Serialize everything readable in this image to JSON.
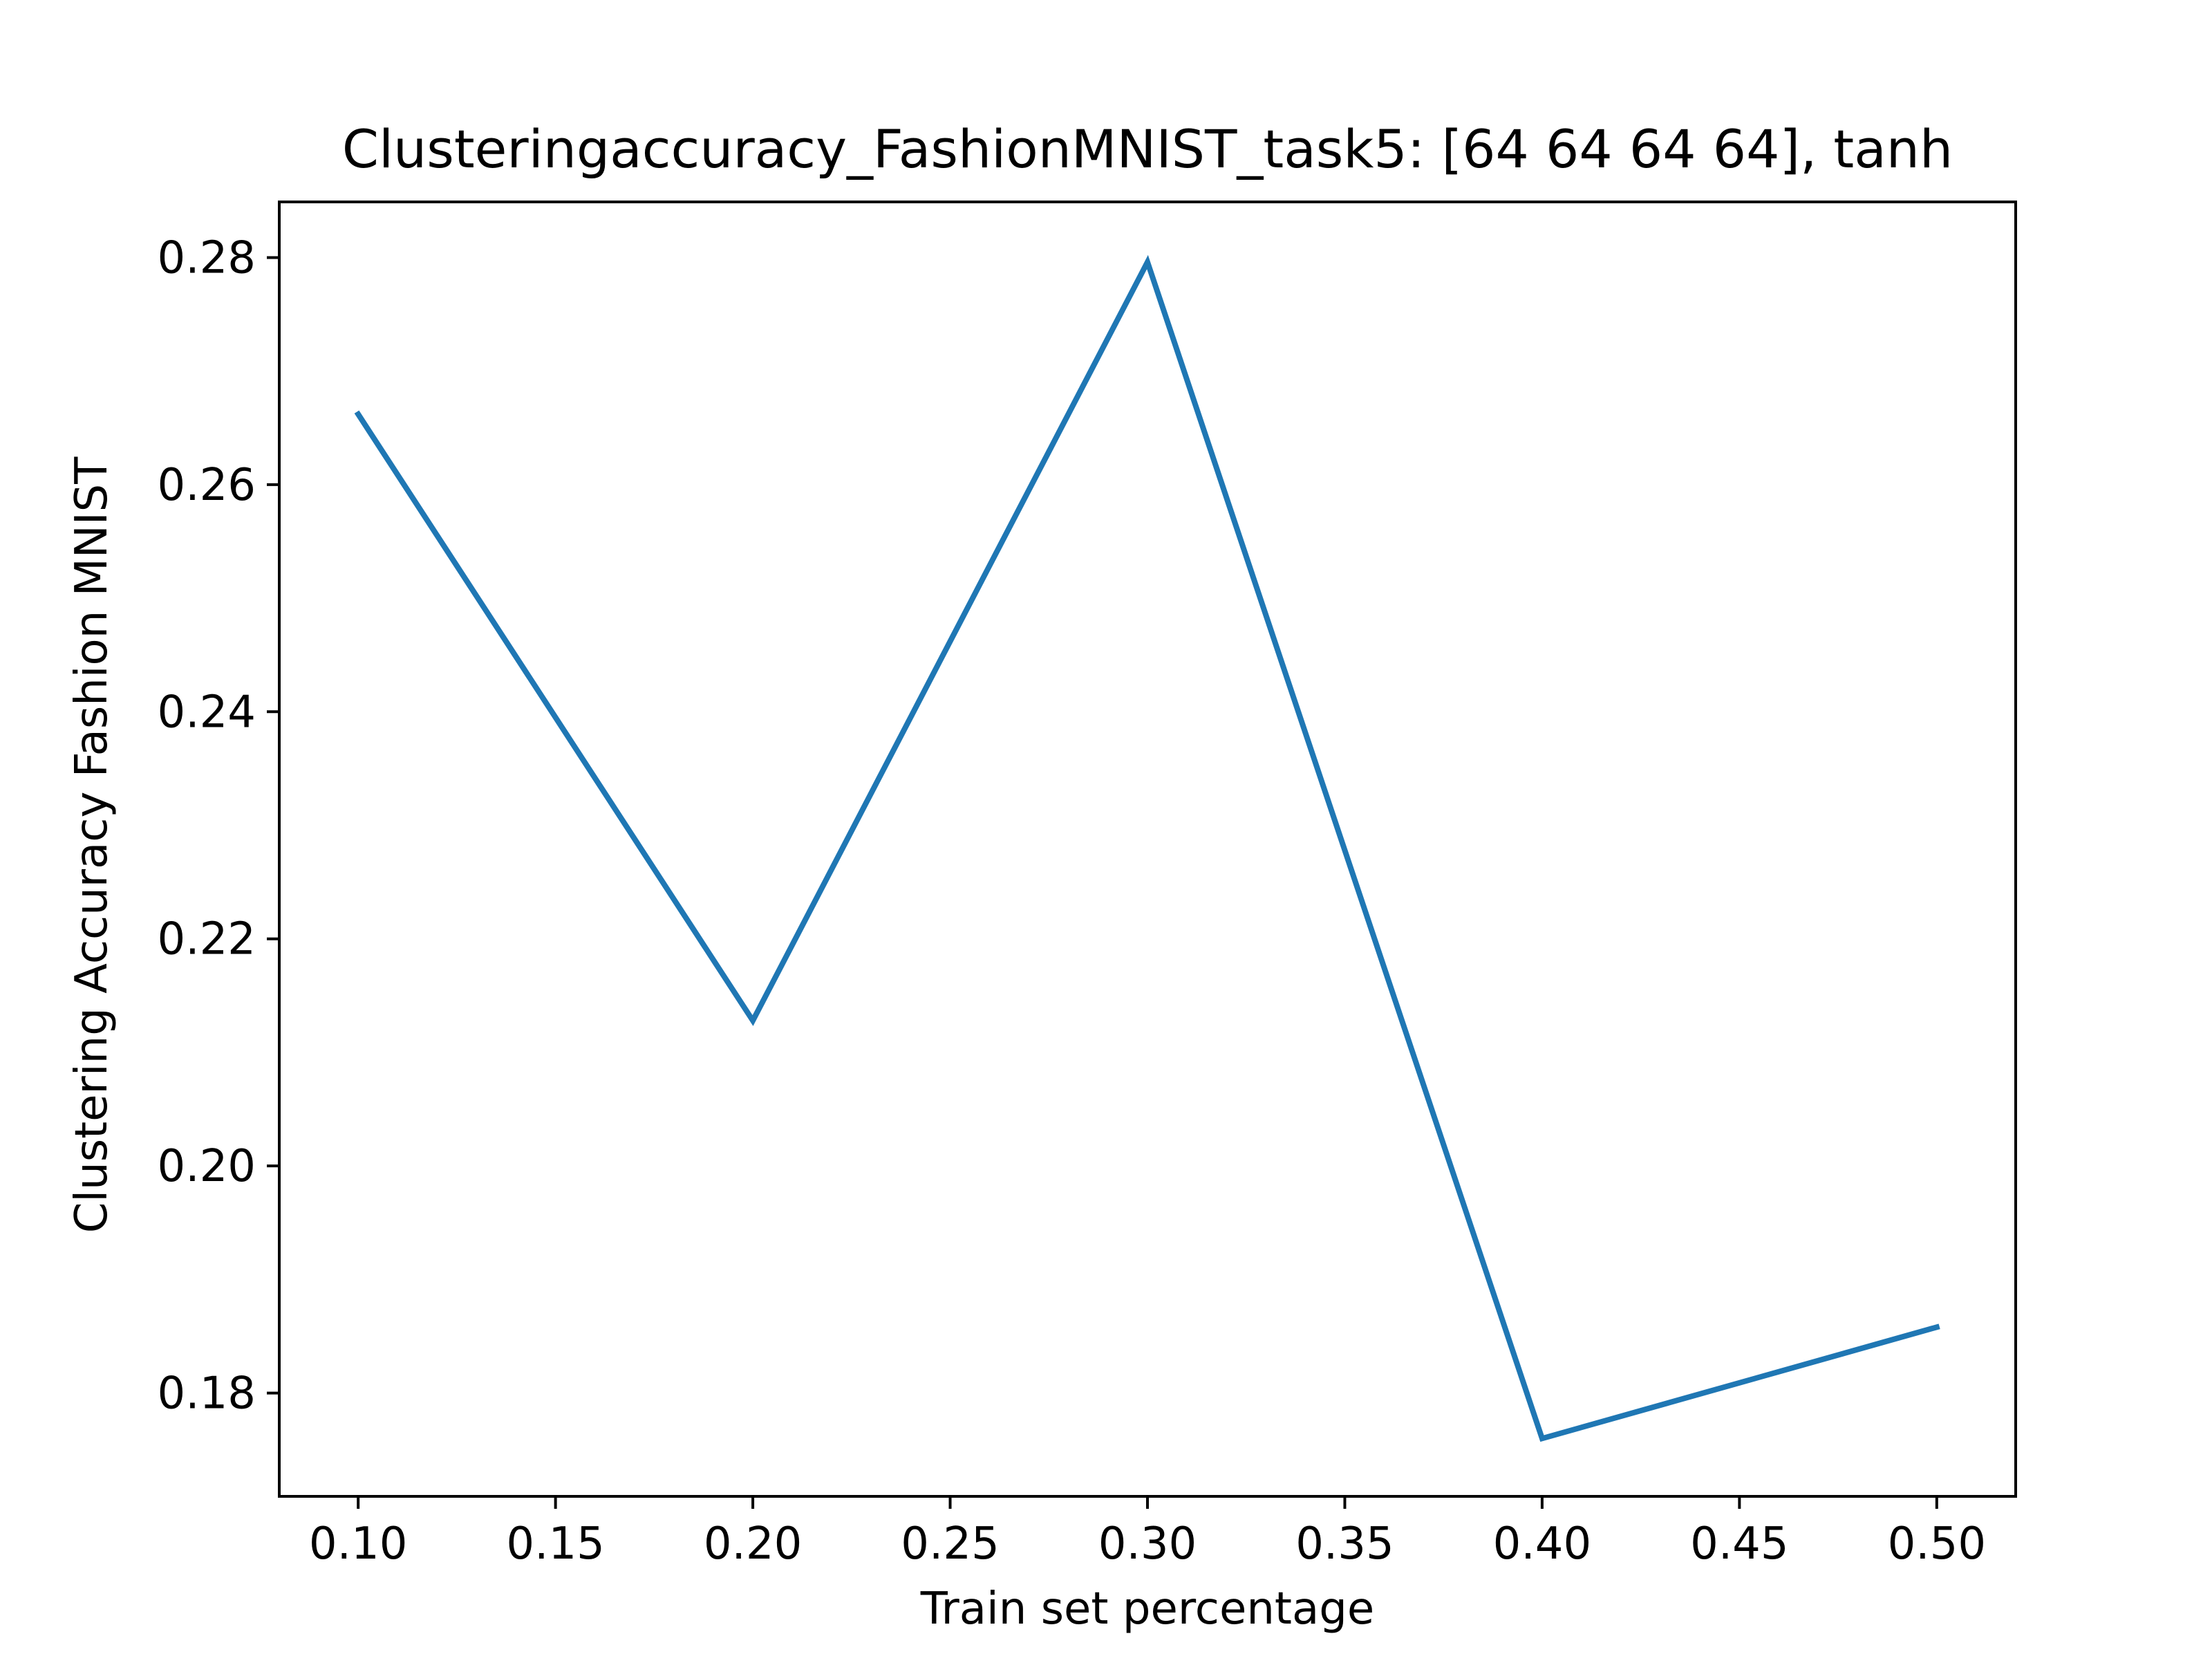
{
  "chart_data": {
    "type": "line",
    "title": "Clusteringaccuracy_FashionMNIST_task5: [64 64 64 64], tanh",
    "xlabel": "Train set percentage",
    "ylabel": "Clustering Accuracy Fashion MNIST",
    "xlim": [
      0.08,
      0.52
    ],
    "ylim": [
      0.1709,
      0.2849
    ],
    "x_ticks": [
      "0.10",
      "0.15",
      "0.20",
      "0.25",
      "0.30",
      "0.35",
      "0.40",
      "0.45",
      "0.50"
    ],
    "y_ticks": [
      "0.18",
      "0.20",
      "0.22",
      "0.24",
      "0.26",
      "0.28"
    ],
    "grid": false,
    "series": [
      {
        "color": "#1f77b4",
        "x": [
          0.1,
          0.2,
          0.3,
          0.4,
          0.5
        ],
        "y": [
          0.2662,
          0.2128,
          0.2796,
          0.176,
          0.1858
        ]
      }
    ]
  }
}
